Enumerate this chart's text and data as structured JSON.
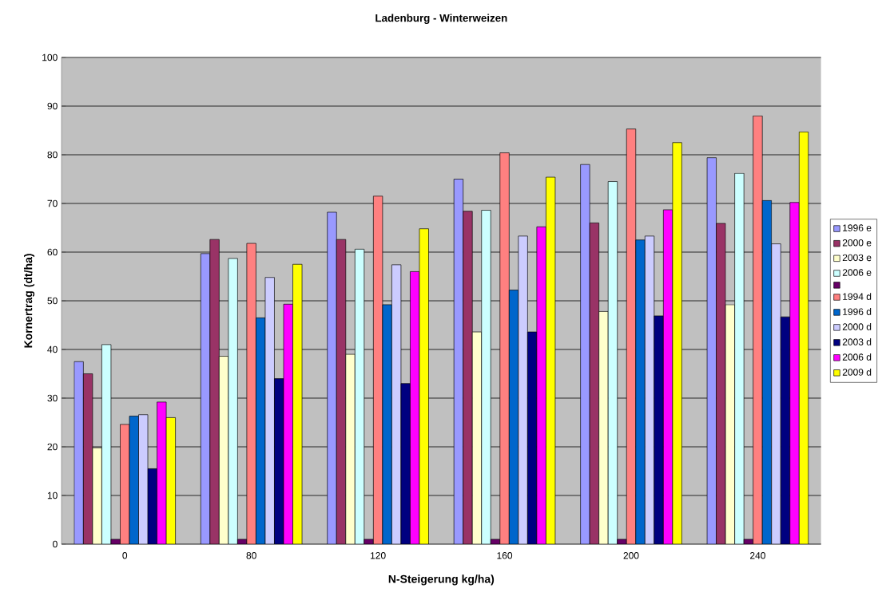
{
  "chart_data": {
    "type": "bar",
    "title": "Ladenburg - Winterweizen",
    "xlabel": "N-Steigerung kg/ha)",
    "ylabel": "Kornertrag (dt/ha)",
    "categories": [
      "0",
      "80",
      "120",
      "160",
      "200",
      "240"
    ],
    "ylim": [
      0,
      100
    ],
    "yticks": [
      0,
      10,
      20,
      30,
      40,
      50,
      60,
      70,
      80,
      90,
      100
    ],
    "grid": "y",
    "legend": "right",
    "series": [
      {
        "name": "1996 e",
        "color": "#9999ff",
        "values": [
          37.5,
          59.7,
          68.2,
          75,
          78,
          79.4
        ]
      },
      {
        "name": "2000 e",
        "color": "#993366",
        "values": [
          35,
          62.6,
          62.6,
          68.4,
          66,
          65.9
        ]
      },
      {
        "name": "2003 e",
        "color": "#ffffcc",
        "values": [
          19.8,
          38.6,
          39,
          43.6,
          47.8,
          49.2
        ]
      },
      {
        "name": "2006 e",
        "color": "#ccffff",
        "values": [
          41,
          58.7,
          60.6,
          68.6,
          74.5,
          76.2
        ]
      },
      {
        "color": "#660066",
        "values": [
          1,
          1,
          1,
          1,
          1,
          1
        ]
      },
      {
        "name": "1994 d",
        "color": "#ff8080",
        "values": [
          24.6,
          61.8,
          71.5,
          80.4,
          85.3,
          88
        ]
      },
      {
        "name": "1996 d",
        "color": "#0066cc",
        "values": [
          26.3,
          46.5,
          49.2,
          52.2,
          62.5,
          70.6
        ]
      },
      {
        "name": "2000 d",
        "color": "#ccccff",
        "values": [
          26.6,
          54.8,
          57.4,
          63.3,
          63.3,
          61.7
        ]
      },
      {
        "name": "2003 d",
        "color": "#000080",
        "values": [
          15.5,
          34,
          33,
          43.6,
          46.9,
          46.7
        ]
      },
      {
        "name": "2006 d",
        "color": "#ff00ff",
        "values": [
          29.2,
          49.3,
          56,
          65.2,
          68.7,
          70.2
        ]
      },
      {
        "name": "2009 d",
        "color": "#ffff00",
        "values": [
          26,
          57.5,
          64.8,
          75.4,
          82.5,
          84.7
        ]
      }
    ]
  }
}
